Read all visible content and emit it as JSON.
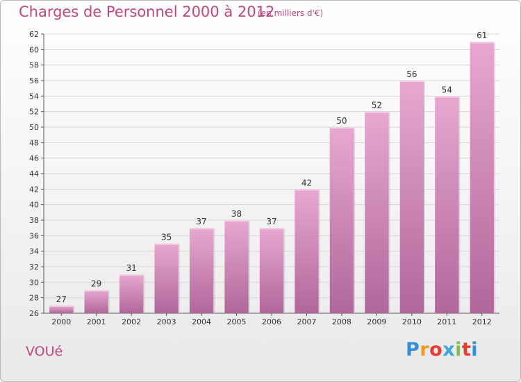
{
  "header": {
    "title": "Charges de Personnel 2000 à 2012",
    "subtitle": "(en milliers d'€)"
  },
  "footer": {
    "commune": "VOUé",
    "logo_letters": [
      "P",
      "r",
      "o",
      "x",
      "i",
      "t",
      "i"
    ],
    "logo_colors": [
      "#2f8fd8",
      "#f29a1f",
      "#e6392f",
      "#3aa7df",
      "#7cc244",
      "#e6392f",
      "#2f8fd8"
    ]
  },
  "colors": {
    "accent": "#c2457f",
    "bar_top": "#e8a8d1",
    "bar_bottom": "#b0679a",
    "grid": "#d6d6d6"
  },
  "chart_data": {
    "type": "bar",
    "categories": [
      "2000",
      "2001",
      "2002",
      "2003",
      "2004",
      "2005",
      "2006",
      "2007",
      "2008",
      "2009",
      "2010",
      "2011",
      "2012"
    ],
    "values": [
      27,
      29,
      31,
      35,
      37,
      38,
      37,
      42,
      50,
      52,
      56,
      54,
      61
    ],
    "title": "Charges de Personnel 2000 à 2012",
    "xlabel": "",
    "ylabel": "",
    "ylim": [
      26,
      62
    ],
    "yticks": [
      26,
      28,
      30,
      32,
      34,
      36,
      38,
      40,
      42,
      44,
      46,
      48,
      50,
      52,
      54,
      56,
      58,
      60,
      62
    ],
    "grid": true,
    "data_labels": true
  }
}
